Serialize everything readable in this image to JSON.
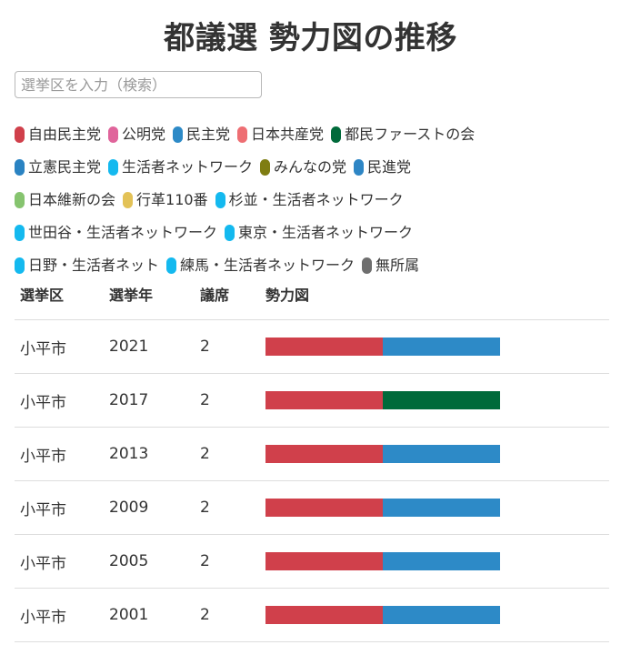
{
  "page_title": "都議選 勢力図の推移",
  "search": {
    "placeholder": "選挙区を入力（検索）",
    "value": ""
  },
  "legend": [
    {
      "label": "自由民主党",
      "color": "#d0404b"
    },
    {
      "label": "公明党",
      "color": "#e0649b"
    },
    {
      "label": "民主党",
      "color": "#2d8ac7"
    },
    {
      "label": "日本共産党",
      "color": "#ee6e73"
    },
    {
      "label": "都民ファーストの会",
      "color": "#006a3a"
    },
    {
      "break": true
    },
    {
      "label": "立憲民主党",
      "color": "#2a83c2"
    },
    {
      "label": "生活者ネットワーク",
      "color": "#14b9ef"
    },
    {
      "label": "みんなの党",
      "color": "#7f7d12"
    },
    {
      "label": "民進党",
      "color": "#2e86c5"
    },
    {
      "break": true
    },
    {
      "label": "日本維新の会",
      "color": "#86c46f"
    },
    {
      "label": "行革110番",
      "color": "#e3c257"
    },
    {
      "label": "杉並・生活者ネットワーク",
      "color": "#14b9ef"
    },
    {
      "break": true
    },
    {
      "label": "世田谷・生活者ネットワーク",
      "color": "#14b9ef"
    },
    {
      "label": "東京・生活者ネットワーク",
      "color": "#14b9ef"
    },
    {
      "break": true
    },
    {
      "label": "日野・生活者ネット",
      "color": "#14b9ef"
    },
    {
      "label": "練馬・生活者ネットワーク",
      "color": "#14b9ef"
    },
    {
      "label": "無所属",
      "color": "#6e6e6e"
    }
  ],
  "table": {
    "headers": [
      "選挙区",
      "選挙年",
      "議席",
      "勢力図"
    ],
    "rows": [
      {
        "district": "小平市",
        "year": "2021",
        "seats": "2",
        "parties": [
          "自由民主党",
          "民主党"
        ],
        "colors": [
          "#d0404b",
          "#2d8ac7"
        ]
      },
      {
        "district": "小平市",
        "year": "2017",
        "seats": "2",
        "parties": [
          "自由民主党",
          "都民ファーストの会"
        ],
        "colors": [
          "#d0404b",
          "#006a3a"
        ]
      },
      {
        "district": "小平市",
        "year": "2013",
        "seats": "2",
        "parties": [
          "自由民主党",
          "民主党"
        ],
        "colors": [
          "#d0404b",
          "#2d8ac7"
        ]
      },
      {
        "district": "小平市",
        "year": "2009",
        "seats": "2",
        "parties": [
          "自由民主党",
          "民主党"
        ],
        "colors": [
          "#d0404b",
          "#2d8ac7"
        ]
      },
      {
        "district": "小平市",
        "year": "2005",
        "seats": "2",
        "parties": [
          "自由民主党",
          "民主党"
        ],
        "colors": [
          "#d0404b",
          "#2d8ac7"
        ]
      },
      {
        "district": "小平市",
        "year": "2001",
        "seats": "2",
        "parties": [
          "自由民主党",
          "民主党"
        ],
        "colors": [
          "#d0404b",
          "#2d8ac7"
        ]
      }
    ]
  }
}
